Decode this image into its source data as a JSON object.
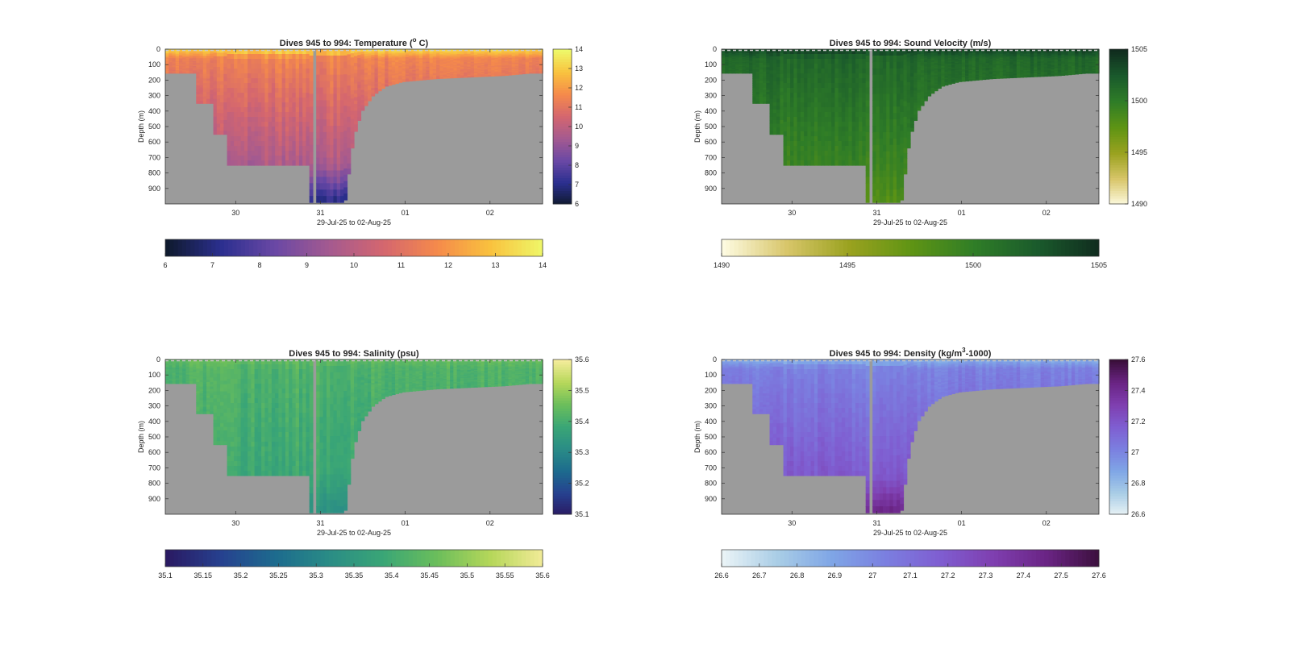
{
  "chart_data": [
    {
      "type": "heatmap",
      "title_main": "Dives 945 to 994: Temperature (",
      "title_sup": "o",
      "title_end": " C)",
      "xlabel": "29-Jul-25 to 02-Aug-25",
      "ylabel": "Depth (m)",
      "x_ticks": [
        "30",
        "31",
        "01",
        "02"
      ],
      "y_ticks": [
        "0",
        "100",
        "200",
        "300",
        "400",
        "500",
        "600",
        "700",
        "800",
        "900"
      ],
      "ylim": [
        0,
        1000
      ],
      "colorbar_ticks": [
        "14",
        "13",
        "12",
        "11",
        "10",
        "9",
        "8",
        "7",
        "6"
      ],
      "hbar_ticks": [
        "6",
        "7",
        "8",
        "9",
        "10",
        "11",
        "12",
        "13",
        "14"
      ],
      "clim": [
        6,
        14
      ],
      "colormap": [
        "#0f1a2e",
        "#2b2f8f",
        "#6a48a5",
        "#a45a90",
        "#d4666f",
        "#f58a4b",
        "#f9c23e",
        "#eef96a"
      ],
      "surface_value": 13.4,
      "deep_value": 9.6,
      "bottom_value": 7.0
    },
    {
      "type": "heatmap",
      "title_main": "Dives 945 to 994: Sound Velocity (m/s)",
      "title_sup": "",
      "title_end": "",
      "xlabel": "29-Jul-25 to 02-Aug-25",
      "ylabel": "Depth (m)",
      "x_ticks": [
        "30",
        "31",
        "01",
        "02"
      ],
      "y_ticks": [
        "0",
        "100",
        "200",
        "300",
        "400",
        "500",
        "600",
        "700",
        "800",
        "900"
      ],
      "ylim": [
        0,
        1000
      ],
      "colorbar_ticks": [
        "1505",
        "1500",
        "1495",
        "1490"
      ],
      "hbar_ticks": [
        "1490",
        "1495",
        "1500",
        "1505"
      ],
      "clim": [
        1490,
        1505
      ],
      "colormap": [
        "#fdfae0",
        "#d8c66a",
        "#9aa21f",
        "#5e9414",
        "#2f7d27",
        "#1a5a2c",
        "#102b1e"
      ],
      "surface_value": 1503.8,
      "deep_value": 1499.4,
      "bottom_value": 1498.2
    },
    {
      "type": "heatmap",
      "title_main": "Dives 945 to 994: Salinity (psu)",
      "title_sup": "",
      "title_end": "",
      "xlabel": "29-Jul-25 to 02-Aug-25",
      "ylabel": "Depth (m)",
      "x_ticks": [
        "30",
        "31",
        "01",
        "02"
      ],
      "y_ticks": [
        "0",
        "100",
        "200",
        "300",
        "400",
        "500",
        "600",
        "700",
        "800",
        "900"
      ],
      "ylim": [
        0,
        1000
      ],
      "colorbar_ticks": [
        "35.6",
        "35.5",
        "35.4",
        "35.3",
        "35.2",
        "35.1"
      ],
      "hbar_ticks": [
        "35.1",
        "35.15",
        "35.2",
        "35.25",
        "35.3",
        "35.35",
        "35.4",
        "35.45",
        "35.5",
        "35.55",
        "35.6"
      ],
      "clim": [
        35.1,
        35.6
      ],
      "colormap": [
        "#2a1a63",
        "#26418f",
        "#1d6b8e",
        "#2a8c86",
        "#3aa676",
        "#6bbe5b",
        "#b6d75a",
        "#f4ec9a"
      ],
      "surface_value": 35.45,
      "deep_value": 35.39,
      "bottom_value": 35.33
    },
    {
      "type": "heatmap",
      "title_main": "Dives 945 to 994: Density (kg/m",
      "title_sup": "3",
      "title_end": "-1000)",
      "xlabel": "29-Jul-25 to 02-Aug-25",
      "ylabel": "Depth (m)",
      "x_ticks": [
        "30",
        "31",
        "01",
        "02"
      ],
      "y_ticks": [
        "0",
        "100",
        "200",
        "300",
        "400",
        "500",
        "600",
        "700",
        "800",
        "900"
      ],
      "ylim": [
        0,
        1000
      ],
      "colorbar_ticks": [
        "27.6",
        "27.4",
        "27.2",
        "27",
        "26.8",
        "26.6"
      ],
      "hbar_ticks": [
        "26.6",
        "26.7",
        "26.8",
        "26.9",
        "27",
        "27.1",
        "27.2",
        "27.3",
        "27.4",
        "27.5",
        "27.6"
      ],
      "clim": [
        26.6,
        27.6
      ],
      "colormap": [
        "#e9f3f6",
        "#a9cde6",
        "#7fa6e6",
        "#7b7fe0",
        "#7f5ed1",
        "#7f3fb0",
        "#6a2484",
        "#3a0f3a"
      ],
      "surface_value": 26.85,
      "deep_value": 27.2,
      "bottom_value": 27.45
    }
  ],
  "bathymetry": {
    "note_depths_m": [
      155,
      155,
      350,
      350,
      550,
      550,
      750,
      750,
      750,
      750,
      990,
      990,
      990,
      575,
      400,
      300,
      240,
      210,
      200,
      190,
      185,
      180,
      175,
      170,
      165,
      160,
      155,
      155
    ],
    "x_days": [
      0,
      0.35,
      0.35,
      0.55,
      0.55,
      0.72,
      0.72,
      1.0,
      1.3,
      1.7,
      1.7,
      1.95,
      2.12,
      2.22,
      2.32,
      2.45,
      2.6,
      2.8,
      3.0,
      3.2,
      3.4,
      3.6,
      3.8,
      4.0,
      4.1,
      4.2,
      4.3,
      4.45
    ]
  }
}
